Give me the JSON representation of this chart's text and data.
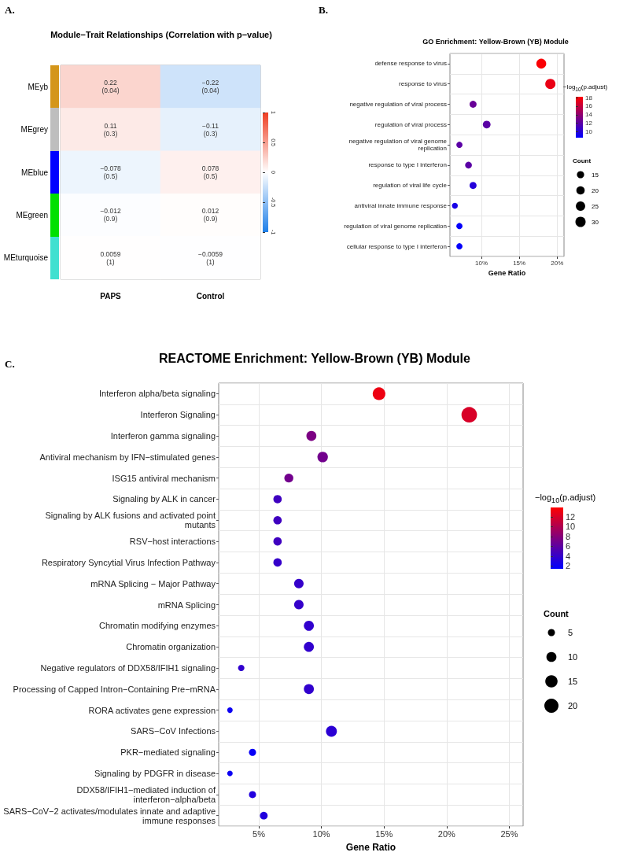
{
  "chart_data": [
    {
      "type": "heatmap",
      "title": "Module−Trait Relationships (Correlation with p−value)",
      "annotations": [
        "A."
      ],
      "categories": [
        "PAPS",
        "Control"
      ],
      "y_categories": [
        "MEyb",
        "MEgrey",
        "MEblue",
        "MEgreen",
        "MEturquoise"
      ],
      "colors": [
        "#d4961a",
        "#bebebe",
        "#0000ff",
        "#00e000",
        "#40e0d0"
      ],
      "cells": [
        [
          0.22,
          -0.22
        ],
        [
          0.11,
          -0.11
        ],
        [
          -0.078,
          0.078
        ],
        [
          -0.012,
          0.012
        ],
        [
          0.0059,
          -0.0059
        ]
      ],
      "cell_labels": [
        [
          "0.22\n(0.04)",
          "−0.22\n(0.04)"
        ],
        [
          "0.11\n(0.3)",
          "−0.11\n(0.3)"
        ],
        [
          "−0.078\n(0.5)",
          "0.078\n(0.5)"
        ],
        [
          "−0.012\n(0.9)",
          "0.012\n(0.9)"
        ],
        [
          "0.0059\n(1)",
          "−0.0059\n(1)"
        ]
      ],
      "clim": [
        -1,
        1
      ],
      "cticks": [
        -1,
        -0.5,
        0,
        0.5,
        1
      ]
    },
    {
      "type": "bubble",
      "title": "GO Enrichment: Yellow-Brown (YB) Module",
      "annotations": [
        "B."
      ],
      "orientation": "horizontal",
      "xlabel": "Gene Ratio",
      "categories": [
        "defense response to virus",
        "response to virus",
        "negative regulation of viral process",
        "regulation of viral process",
        "negative regulation of viral genome\nreplication",
        "response to type I interferon",
        "regulation of viral life cycle",
        "antiviral innate immune response",
        "regulation of viral genome replication",
        "cellular response to type I interferon"
      ],
      "values": [
        17.9,
        19.1,
        8.9,
        10.7,
        7.1,
        8.3,
        8.9,
        6.5,
        7.1,
        7.1
      ],
      "sizes": [
        28,
        30,
        14,
        17,
        11,
        13,
        14,
        10,
        11,
        11
      ],
      "cvalues": [
        18,
        17.4,
        12.5,
        12,
        12,
        12,
        10,
        9.5,
        8.8,
        8.8
      ],
      "xlim": [
        5.85,
        20.9
      ],
      "xticks": [
        {
          "value": 10,
          "label": "10%"
        },
        {
          "value": 15,
          "label": "15%"
        },
        {
          "value": 20,
          "label": "20%"
        }
      ],
      "clabel": "−log$_{10}$(p.adjust)",
      "clim": [
        8.6,
        18.2
      ],
      "cticks": [
        10,
        12,
        14,
        16,
        18
      ],
      "legend_title": "Count",
      "size_legend": [
        15,
        20,
        25,
        30
      ],
      "grid": true
    },
    {
      "type": "bubble",
      "title": "REACTOME Enrichment: Yellow-Brown (YB) Module",
      "annotations": [
        "C."
      ],
      "orientation": "horizontal",
      "xlabel": "Gene Ratio",
      "categories": [
        "Interferon alpha/beta signaling",
        "Interferon Signaling",
        "Interferon gamma signaling",
        "Antiviral mechanism by IFN−stimulated genes",
        "ISG15 antiviral mechanism",
        "Signaling by ALK in cancer",
        "Signaling by ALK fusions and activated point\nmutants",
        "RSV−host interactions",
        "Respiratory Syncytial Virus Infection Pathway",
        "mRNA Splicing − Major Pathway",
        "mRNA Splicing",
        "Chromatin modifying enzymes",
        "Chromatin organization",
        "Negative regulators of DDX58/IFIH1 signaling",
        "Processing of Capped Intron−Containing Pre−mRNA",
        "RORA activates gene expression",
        "SARS−CoV Infections",
        "PKR−mediated signaling",
        "Signaling by PDGFR in disease",
        "DDX58/IFIH1−mediated induction of\ninterferon−alpha/beta",
        "SARS−CoV−2 activates/modulates innate and adaptive\nimmune responses"
      ],
      "values": [
        14.6,
        21.8,
        9.2,
        10.1,
        7.4,
        6.5,
        6.5,
        6.5,
        6.5,
        8.2,
        8.2,
        9.0,
        9.0,
        3.6,
        9.0,
        2.7,
        10.8,
        4.5,
        2.7,
        4.5,
        5.4
      ],
      "sizes": [
        16,
        24,
        10,
        11,
        8,
        7,
        7,
        7,
        7,
        9,
        9,
        10,
        10,
        4,
        10,
        3,
        12,
        5,
        3,
        5,
        6
      ],
      "cvalues": [
        13,
        12,
        7.5,
        7,
        7,
        4.5,
        4.5,
        4.5,
        4,
        4,
        4,
        3.8,
        3.8,
        3.8,
        3.8,
        2,
        3.5,
        1.8,
        2,
        3,
        3
      ],
      "xlim": [
        1.8,
        26.1
      ],
      "xticks": [
        {
          "value": 5,
          "label": "5%"
        },
        {
          "value": 10,
          "label": "10%"
        },
        {
          "value": 15,
          "label": "15%"
        },
        {
          "value": 20,
          "label": "20%"
        },
        {
          "value": 25,
          "label": "25%"
        }
      ],
      "clabel": "−log$_{10}$(p.adjust)",
      "clim": [
        1.4,
        13.9
      ],
      "cticks": [
        2,
        4,
        6,
        8,
        10,
        12
      ],
      "legend_title": "Count",
      "size_legend": [
        5,
        10,
        15,
        20
      ],
      "grid": true
    }
  ]
}
